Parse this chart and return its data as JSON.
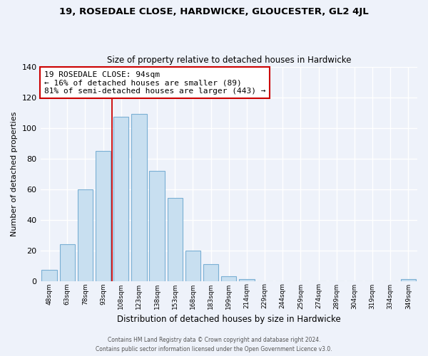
{
  "title": "19, ROSEDALE CLOSE, HARDWICKE, GLOUCESTER, GL2 4JL",
  "subtitle": "Size of property relative to detached houses in Hardwicke",
  "xlabel": "Distribution of detached houses by size in Hardwicke",
  "ylabel": "Number of detached properties",
  "bar_color": "#c8dff0",
  "bar_edge_color": "#7aafd4",
  "background_color": "#eef2fa",
  "grid_color": "white",
  "categories": [
    "48sqm",
    "63sqm",
    "78sqm",
    "93sqm",
    "108sqm",
    "123sqm",
    "138sqm",
    "153sqm",
    "168sqm",
    "183sqm",
    "199sqm",
    "214sqm",
    "229sqm",
    "244sqm",
    "259sqm",
    "274sqm",
    "289sqm",
    "304sqm",
    "319sqm",
    "334sqm",
    "349sqm"
  ],
  "values": [
    7,
    24,
    60,
    85,
    107,
    109,
    72,
    54,
    20,
    11,
    3,
    1,
    0,
    0,
    0,
    0,
    0,
    0,
    0,
    0,
    1
  ],
  "ylim": [
    0,
    140
  ],
  "yticks": [
    0,
    20,
    40,
    60,
    80,
    100,
    120,
    140
  ],
  "vline_x": 3.5,
  "vline_color": "#cc0000",
  "annotation_text": "19 ROSEDALE CLOSE: 94sqm\n← 16% of detached houses are smaller (89)\n81% of semi-detached houses are larger (443) →",
  "annotation_box_color": "white",
  "annotation_box_edge_color": "#cc0000",
  "footnote1": "Contains HM Land Registry data © Crown copyright and database right 2024.",
  "footnote2": "Contains public sector information licensed under the Open Government Licence v3.0."
}
